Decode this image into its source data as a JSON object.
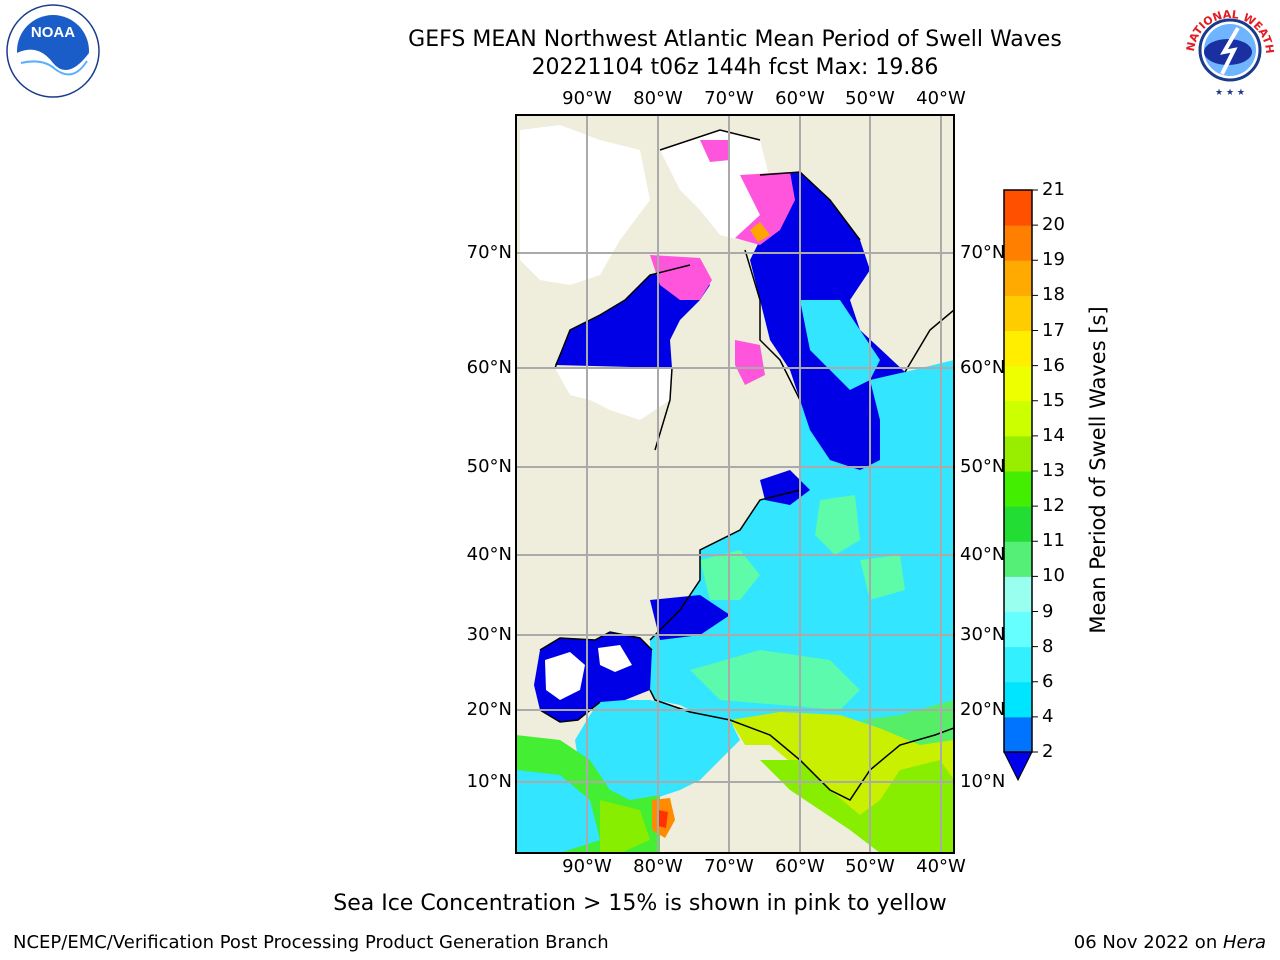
{
  "header": {
    "title_line1": "GEFS MEAN Northwest Atlantic Mean Period of Swell Waves",
    "title_line2": "20221104 t06z 144h fcst   Max: 19.86"
  },
  "logos": {
    "left": "NOAA",
    "left_ring_text": "NATIONAL OCEANIC AND ATMOSPHERIC ADMINISTRATION · U.S. DEPARTMENT OF COMMERCE",
    "right_ring_text": "NATIONAL WEATHER SERVICE"
  },
  "map": {
    "lon_labels": [
      "90°W",
      "80°W",
      "70°W",
      "60°W",
      "50°W",
      "40°W"
    ],
    "lat_labels": [
      "70°N",
      "60°N",
      "50°N",
      "40°N",
      "30°N",
      "20°N",
      "10°N"
    ],
    "colors": {
      "land": "#efeddc",
      "ocean_dominant": "#33e5ff",
      "low_period": "#0000e6",
      "ice": "#ff55dd"
    }
  },
  "colorbar": {
    "title": "Mean Period of Swell Waves [s]",
    "ticks": [
      "2",
      "4",
      "6",
      "8",
      "9",
      "10",
      "11",
      "12",
      "13",
      "14",
      "15",
      "16",
      "17",
      "18",
      "19",
      "20",
      "21"
    ],
    "colors": [
      "#0073ff",
      "#00e5ff",
      "#33f0ff",
      "#66ffff",
      "#99ffee",
      "#55ee77",
      "#22dd33",
      "#44ee00",
      "#99ee00",
      "#ccff00",
      "#eeff00",
      "#ffee00",
      "#ffcc00",
      "#ffaa00",
      "#ff8000",
      "#ff5000",
      "#ff2000",
      "#ff0000"
    ],
    "extend_color": "#0000ee"
  },
  "note": "Sea Ice Concentration > 15% is shown in pink to yellow",
  "footer": {
    "left": "NCEP/EMC/Verification Post Processing Product Generation Branch",
    "right_prefix": "06 Nov 2022 on ",
    "right_machine": "Hera"
  }
}
